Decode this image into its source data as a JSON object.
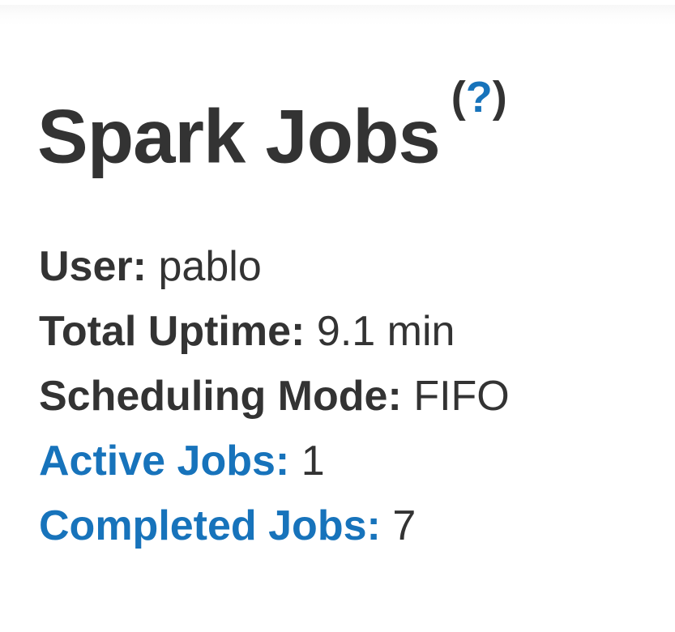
{
  "page": {
    "title": "Spark Jobs",
    "help": {
      "prefix": "(",
      "icon": "?",
      "suffix": ")"
    }
  },
  "summary": {
    "rows": [
      {
        "label": "User:",
        "value": "pablo"
      },
      {
        "label": "Total Uptime:",
        "value": "9.1 min"
      },
      {
        "label": "Scheduling Mode:",
        "value": "FIFO"
      },
      {
        "label": "Active Jobs:",
        "value": "1"
      },
      {
        "label": "Completed Jobs:",
        "value": "7"
      }
    ]
  },
  "colors": {
    "link_blue": "#1773bb",
    "text_dark": "#333333"
  }
}
